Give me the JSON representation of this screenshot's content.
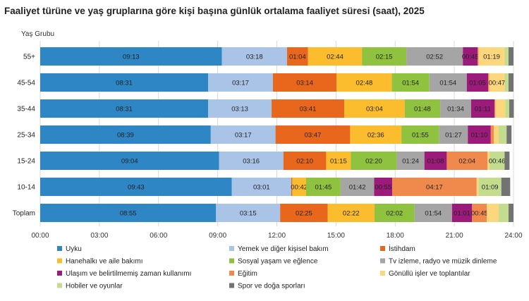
{
  "chart_data": {
    "type": "bar",
    "orientation": "horizontal",
    "stacked": true,
    "title": "Faaliyet türüne ve yaş gruplarına göre kişi başına günlük ortalama faaliyet süresi (saat), 2025",
    "ylabel": "Yaş Grubu",
    "xlabel": "",
    "x_unit": "hours (hh:mm)",
    "xlim": [
      0,
      24
    ],
    "x_ticks": [
      "00:00",
      "03:00",
      "06:00",
      "09:00",
      "12:00",
      "15:00",
      "18:00",
      "21:00",
      "24:00"
    ],
    "grid": "vertical",
    "legend_position": "bottom",
    "categories": [
      "55+",
      "45-54",
      "35-44",
      "25-34",
      "15-24",
      "10-14",
      "Toplam"
    ],
    "series": [
      {
        "name": "Uyku",
        "color": "#2f86c5",
        "label_color": "#ffffff",
        "values": [
          9.2167,
          8.5167,
          8.5167,
          8.65,
          9.0667,
          9.7167,
          8.9167
        ],
        "labels": [
          "09:13",
          "08:31",
          "08:31",
          "08:39",
          "09:04",
          "09:43",
          "08:55"
        ]
      },
      {
        "name": "Yemek ve diğer kişisel bakım",
        "color": "#a9c4e6",
        "label_color": "#222222",
        "values": [
          3.3,
          3.2833,
          3.2167,
          3.2833,
          3.2667,
          3.0167,
          3.25
        ],
        "labels": [
          "03:18",
          "03:17",
          "03:13",
          "03:17",
          "03:16",
          "03:01",
          "03:15"
        ]
      },
      {
        "name": "İstihdam",
        "color": "#e8671c",
        "label_color": "#222222",
        "values": [
          1.0667,
          3.2333,
          3.6833,
          3.7833,
          2.1667,
          0.05,
          2.4167
        ],
        "labels": [
          "01:04",
          "03:14",
          "03:41",
          "03:47",
          "02:10",
          "",
          "02:25"
        ]
      },
      {
        "name": "Hanehalkı ve aile bakımı",
        "color": "#fbbd2e",
        "label_color": "#222222",
        "values": [
          2.7333,
          2.8,
          3.0667,
          2.6,
          1.25,
          0.7,
          2.3667
        ],
        "labels": [
          "02:44",
          "02:48",
          "03:04",
          "02:36",
          "01:15",
          "00:42",
          "02:22"
        ]
      },
      {
        "name": "Sosyal yaşam ve eğlence",
        "color": "#8fc23e",
        "label_color": "#222222",
        "values": [
          2.25,
          1.9,
          1.8,
          1.9167,
          2.3333,
          1.75,
          2.0333
        ],
        "labels": [
          "02:15",
          "01:54",
          "01:48",
          "01:55",
          "02:20",
          "01:45",
          "02:02"
        ]
      },
      {
        "name": "Tv izleme, radyo ve müzik dinleme",
        "color": "#a5a5a5",
        "label_color": "#222222",
        "values": [
          2.8667,
          1.9,
          1.5667,
          1.45,
          1.4,
          1.7,
          1.9
        ],
        "labels": [
          "02:52",
          "01:54",
          "01:34",
          "01:27",
          "01:24",
          "01:42",
          "01:54"
        ]
      },
      {
        "name": "Ulaşım ve belirtilmemiş zaman kullanımı",
        "color": "#9c1a7a",
        "label_color": "#ffffff",
        "values": [
          0.75,
          1.0833,
          1.1833,
          1.1667,
          1.1333,
          0.9167,
          1.0167
        ],
        "labels": [
          "00:45",
          "01:05",
          "01:11",
          "01:10",
          "01:08",
          "00:55",
          "01:01"
        ]
      },
      {
        "name": "Eğitim",
        "color": "#f0894c",
        "label_color": "#222222",
        "values": [
          0.05,
          0.05,
          0.05,
          0.15,
          2.0667,
          4.2833,
          0.75
        ],
        "labels": [
          "",
          "",
          "",
          "",
          "02:04",
          "04:17",
          "00:45"
        ]
      },
      {
        "name": "Gönüllü işler ve toplantılar",
        "color": "#fdd77e",
        "label_color": "#222222",
        "values": [
          1.3167,
          0.7833,
          0.5,
          0.25,
          0.1,
          0.1,
          0.6
        ],
        "labels": [
          "01:19",
          "00:47",
          "",
          "",
          "",
          "",
          ""
        ]
      },
      {
        "name": "Hobiler ve oyunlar",
        "color": "#c3dc8e",
        "label_color": "#222222",
        "values": [
          0.2,
          0.2,
          0.2,
          0.4,
          0.7667,
          1.15,
          0.5
        ],
        "labels": [
          "",
          "",
          "",
          "",
          "00:46",
          "01:09",
          ""
        ]
      },
      {
        "name": "Spor ve doğa sporları",
        "color": "#737373",
        "label_color": "#ffffff",
        "values": [
          0.25,
          0.25,
          0.2333,
          0.25,
          0.25,
          0.45,
          0.25
        ],
        "labels": [
          "",
          "",
          "",
          "",
          "",
          "",
          ""
        ]
      }
    ]
  }
}
